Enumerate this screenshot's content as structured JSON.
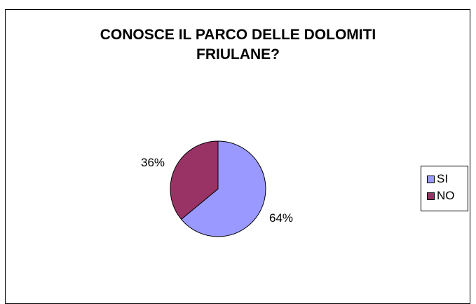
{
  "chart_data": {
    "type": "pie",
    "title_lines": [
      "CONOSCE IL PARCO DELLE DOLOMITI",
      "FRIULANE?"
    ],
    "slices": [
      {
        "label": "SI",
        "value": 64,
        "value_label": "64%",
        "color": "#9999ff"
      },
      {
        "label": "NO",
        "value": 36,
        "value_label": "36%",
        "color": "#993366"
      }
    ],
    "legend_placement": "right",
    "slice_border_color": "#000000"
  }
}
